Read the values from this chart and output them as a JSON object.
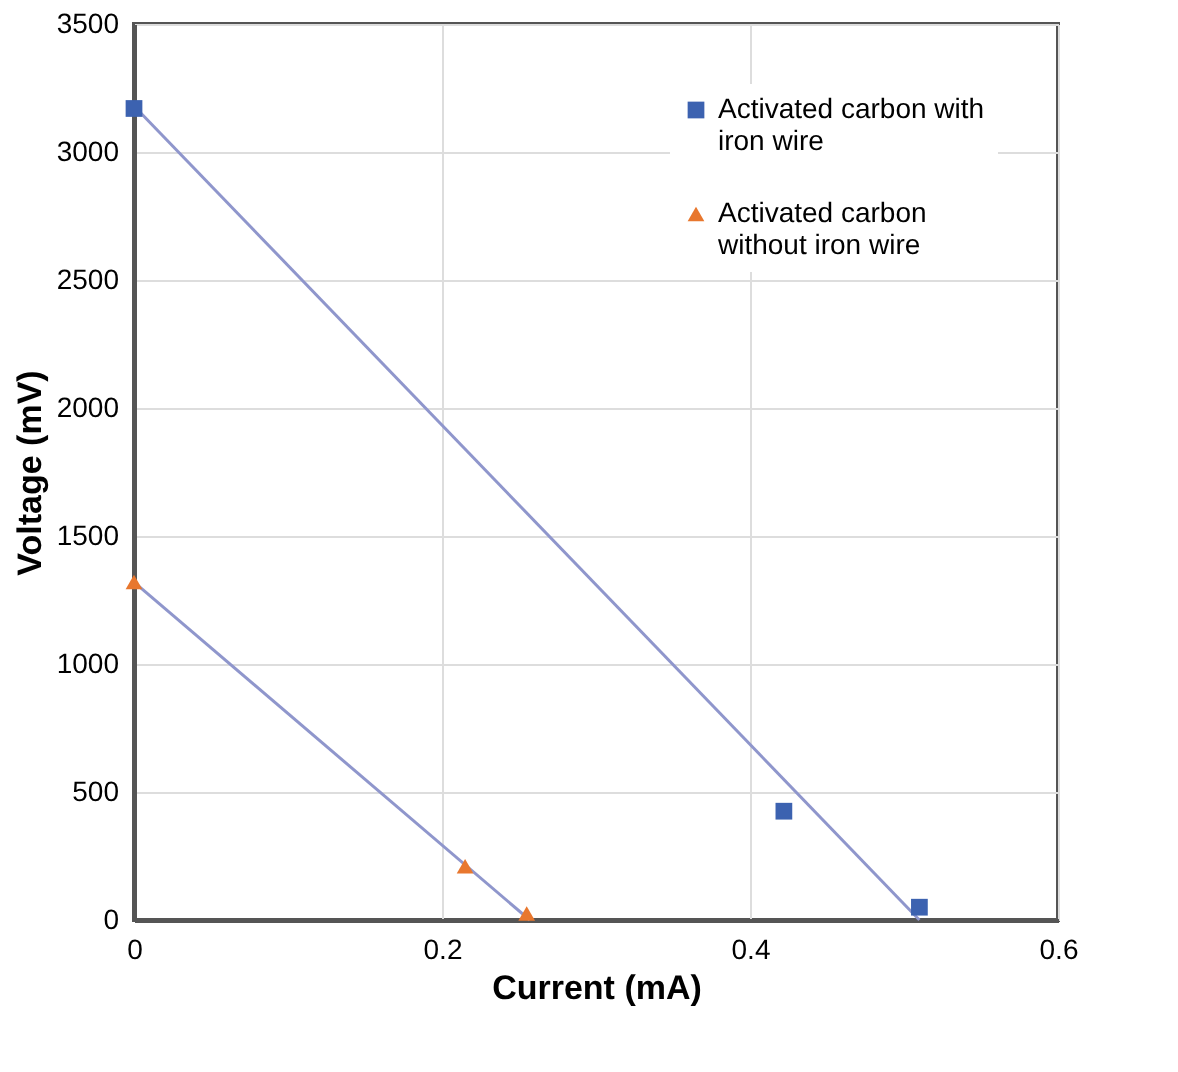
{
  "chart_data": {
    "type": "scatter",
    "xlabel": "Current (mA)",
    "ylabel": "Voltage (mV)",
    "series": [
      {
        "name": "Activated carbon with iron wire",
        "color": "#3c62b0",
        "marker": "square",
        "x": [
          0,
          0.422,
          0.51
        ],
        "values": [
          3170,
          425,
          50
        ]
      },
      {
        "name": "Activated carbon without iron wire",
        "color": "#e8772e",
        "marker": "triangle",
        "x": [
          0,
          0.215,
          0.255
        ],
        "values": [
          1320,
          210,
          25
        ]
      },
      {
        "type": "line",
        "color": "#8f96cc",
        "x": [
          0,
          0.51
        ],
        "values": [
          3180,
          0
        ]
      },
      {
        "type": "line",
        "color": "#8f96cc",
        "x": [
          0,
          0.257
        ],
        "values": [
          1320,
          0
        ]
      }
    ],
    "xlim": [
      0,
      0.6
    ],
    "xticks": [
      0,
      0.2,
      0.4,
      0.6
    ],
    "ylim": [
      0,
      3500
    ],
    "yticks": [
      0,
      500,
      1000,
      1500,
      2000,
      2500,
      3000,
      3500
    ],
    "grid": true,
    "legend": "top right"
  }
}
